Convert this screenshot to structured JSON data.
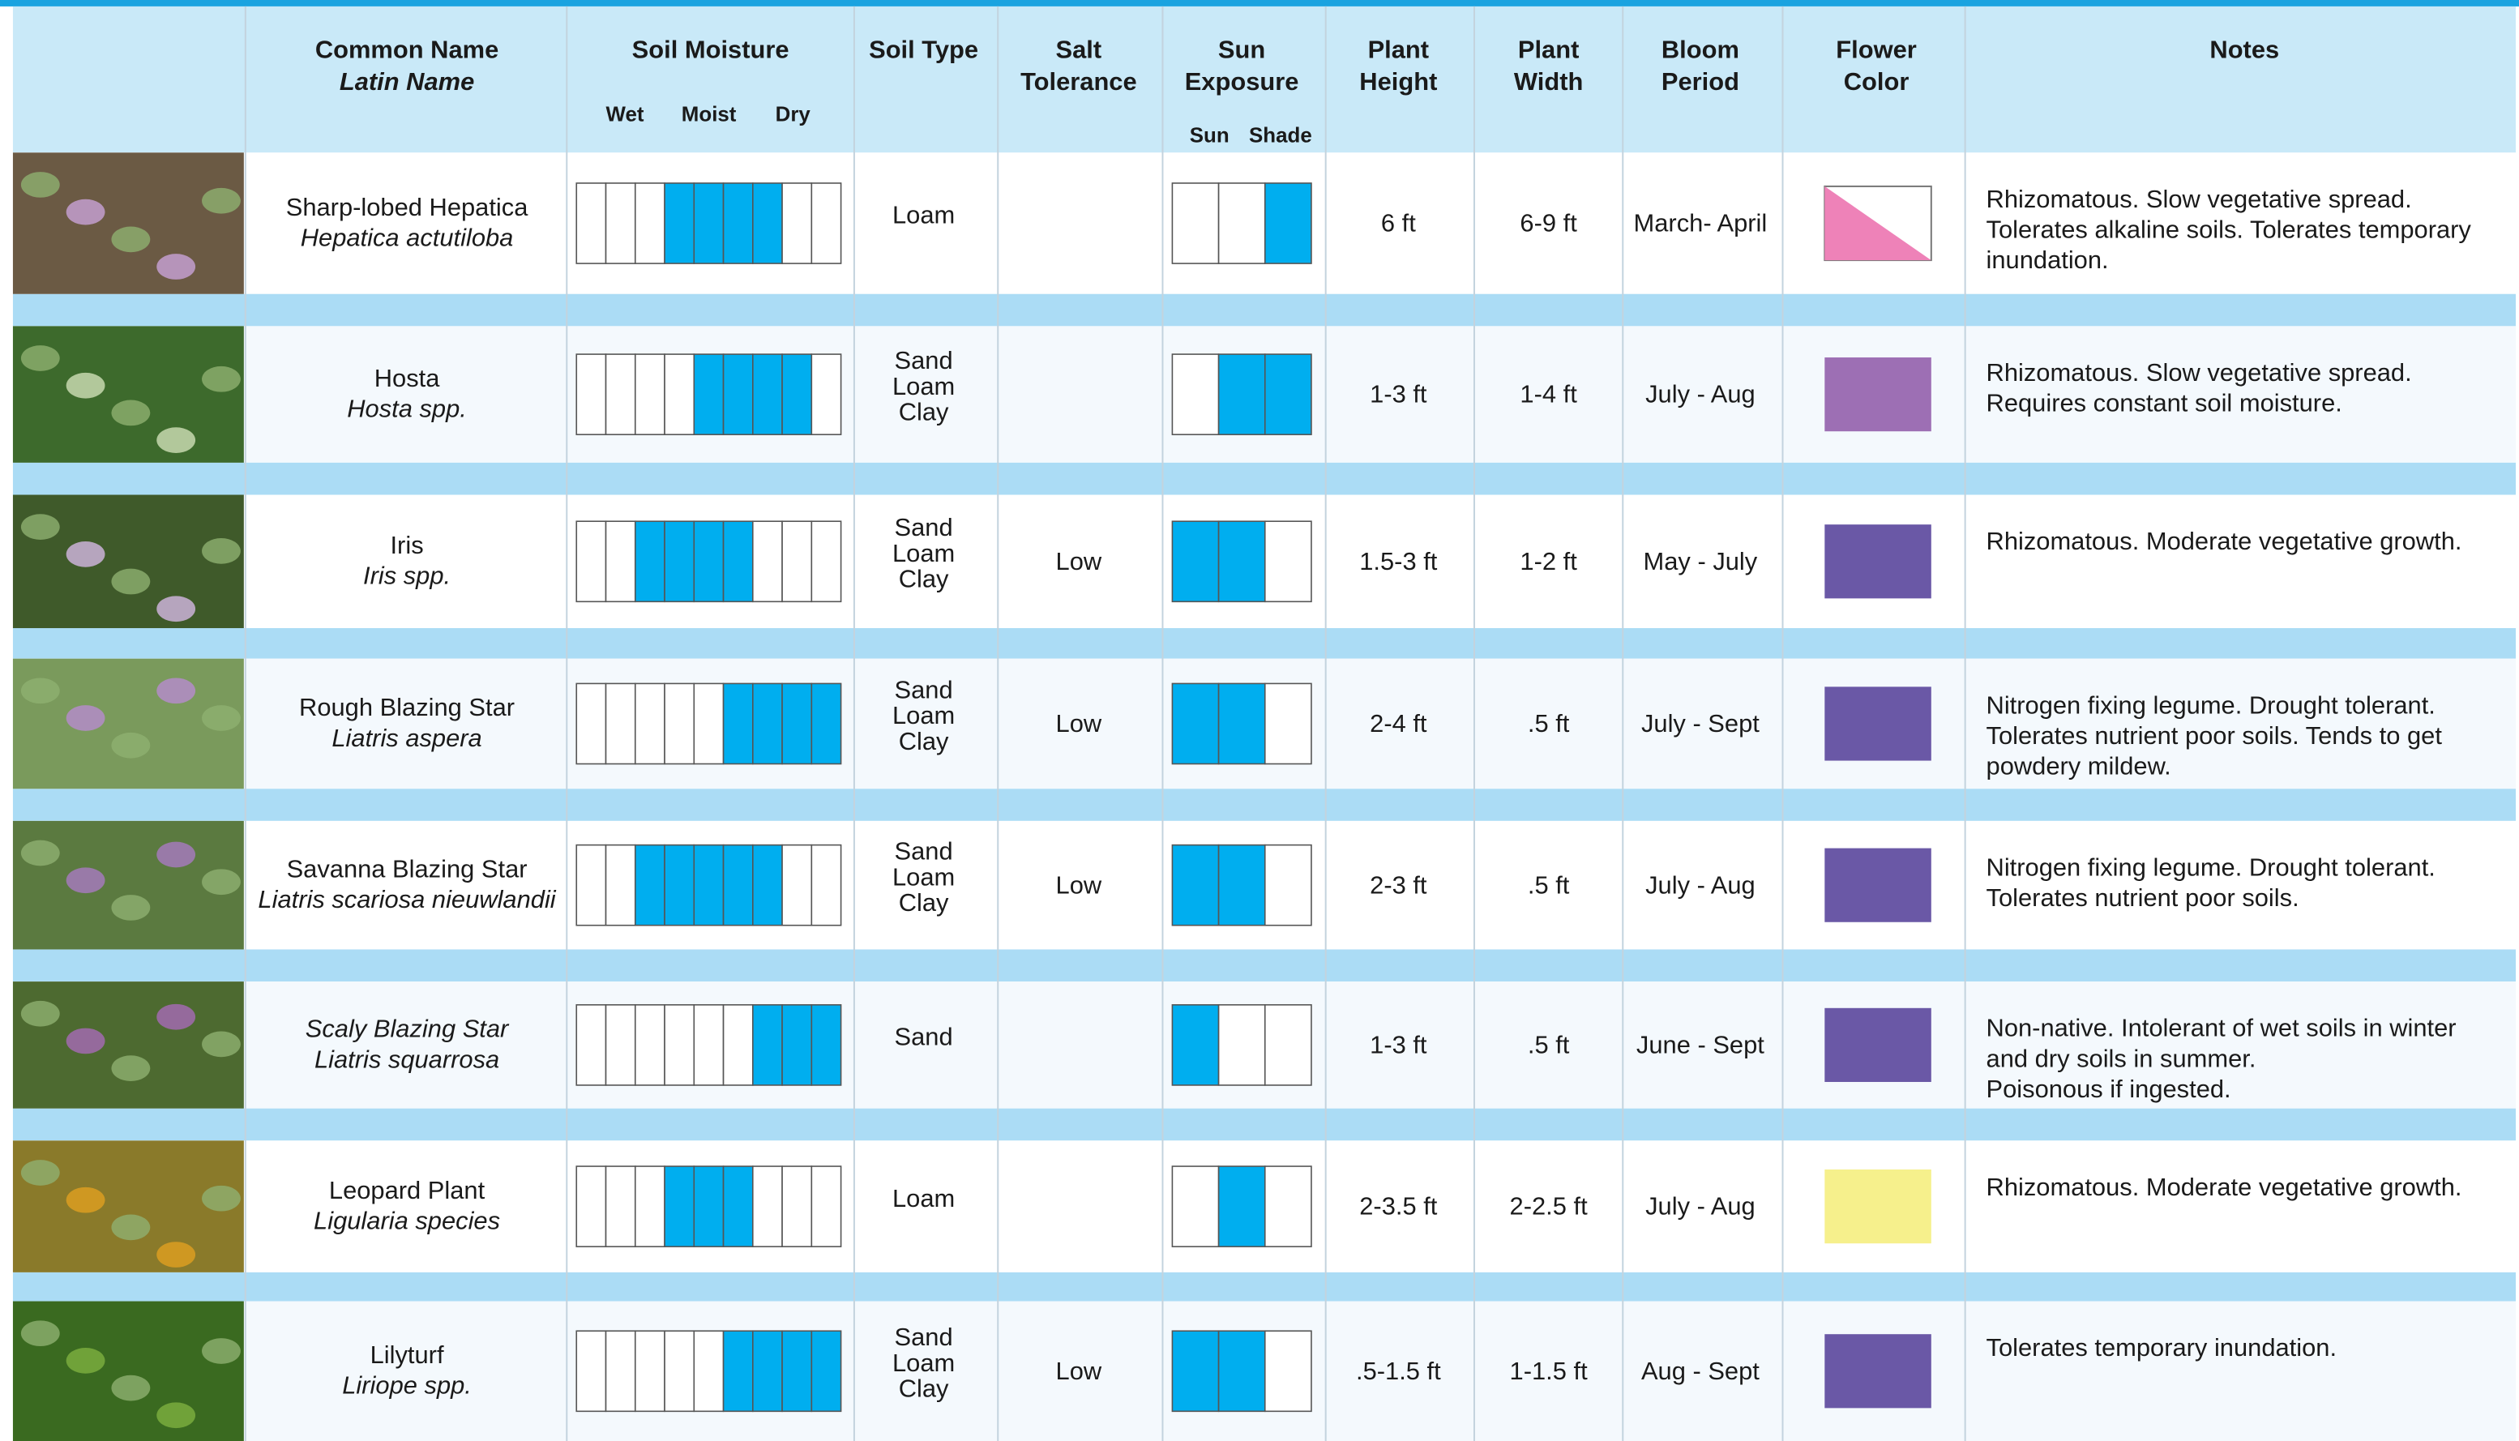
{
  "header": {
    "name": "Common Name",
    "latin": "Latin Name",
    "moisture": "Soil Moisture",
    "moisture_levels": [
      "Wet",
      "Moist",
      "Dry"
    ],
    "soil": "Soil Type",
    "salt": [
      "Salt",
      "Tolerance"
    ],
    "sun": [
      "Sun",
      "Exposure"
    ],
    "sun_levels": [
      "Sun",
      "Shade"
    ],
    "height": [
      "Plant",
      "Height"
    ],
    "width": [
      "Plant",
      "Width"
    ],
    "bloom": [
      "Bloom",
      "Period"
    ],
    "color": [
      "Flower",
      "Color"
    ],
    "notes": "Notes"
  },
  "rows": [
    {
      "name": "Sharp-lobed Hepatica",
      "latin": "Hepatica actutiloba",
      "moisture": [
        0,
        0,
        0,
        1,
        1,
        1,
        1,
        0,
        0
      ],
      "soil": [
        "Loam"
      ],
      "sun": [
        0,
        0,
        1
      ],
      "height": "6 ft",
      "width": "6-9 ft",
      "bloom": "March- April",
      "color": "#ee82b8",
      "color_split": true,
      "notes": [
        "Rhizomatous. Slow vegetative spread.",
        "Tolerates alkaline soils. Tolerates temporary",
        "inundation."
      ]
    },
    {
      "name": "Hosta",
      "latin": "Hosta spp.",
      "moisture": [
        0,
        0,
        0,
        0,
        1,
        1,
        1,
        1,
        0
      ],
      "soil": [
        "Sand",
        "Loam",
        "Clay"
      ],
      "sun": [
        0,
        1,
        1
      ],
      "height": "1-3 ft",
      "width": "1-4 ft",
      "bloom": "July - Aug",
      "color": "#9d6fb4",
      "notes": [
        "Rhizomatous. Slow vegetative spread.",
        "Requires constant soil moisture."
      ]
    },
    {
      "name": "Iris",
      "latin": "Iris spp.",
      "moisture": [
        0,
        0,
        1,
        1,
        1,
        1,
        0,
        0,
        0
      ],
      "soil": [
        "Sand",
        "Loam",
        "Clay"
      ],
      "salt": "Low",
      "sun": [
        1,
        1,
        0
      ],
      "height": "1.5-3 ft",
      "width": "1-2 ft",
      "bloom": "May - July",
      "color": "#6a58a6",
      "notes": [
        "Rhizomatous. Moderate vegetative growth."
      ]
    },
    {
      "name": "Rough Blazing Star",
      "latin": "Liatris aspera",
      "moisture": [
        0,
        0,
        0,
        0,
        0,
        1,
        1,
        1,
        1
      ],
      "soil": [
        "Sand",
        "Loam",
        "Clay"
      ],
      "salt": "Low",
      "sun": [
        1,
        1,
        0
      ],
      "height": "2-4 ft",
      "width": ".5 ft",
      "bloom": "July - Sept",
      "color": "#6a58a6",
      "notes": [
        "Nitrogen fixing legume. Drought tolerant.",
        "Tolerates nutrient poor soils. Tends to get",
        "powdery mildew."
      ]
    },
    {
      "name": "Savanna Blazing Star",
      "latin": "Liatris scariosa nieuwlandii",
      "moisture": [
        0,
        0,
        1,
        1,
        1,
        1,
        1,
        0,
        0
      ],
      "soil": [
        "Sand",
        "Loam",
        "Clay"
      ],
      "salt": "Low",
      "sun": [
        1,
        1,
        0
      ],
      "height": "2-3 ft",
      "width": ".5 ft",
      "bloom": "July - Aug",
      "color": "#6a58a6",
      "notes": [
        "Nitrogen fixing legume. Drought tolerant.",
        "Tolerates nutrient poor soils."
      ]
    },
    {
      "name": "Scaly Blazing Star",
      "name_italic": true,
      "latin": "Liatris squarrosa",
      "moisture": [
        0,
        0,
        0,
        0,
        0,
        0,
        1,
        1,
        1
      ],
      "soil": [
        "Sand"
      ],
      "sun": [
        1,
        0,
        0
      ],
      "height": "1-3 ft",
      "width": ".5 ft",
      "bloom": "June - Sept",
      "color": "#6a58a6",
      "notes": [
        "Non-native. Intolerant of wet soils in winter",
        "and dry soils in summer.",
        "Poisonous if ingested."
      ]
    },
    {
      "name": "Leopard Plant",
      "latin": "Ligularia species",
      "moisture": [
        0,
        0,
        0,
        1,
        1,
        1,
        0,
        0,
        0
      ],
      "soil": [
        "Loam"
      ],
      "sun": [
        0,
        1,
        0
      ],
      "height": "2-3.5 ft",
      "width": "2-2.5 ft",
      "bloom": "July - Aug",
      "color": "#f6f08c",
      "notes": [
        "Rhizomatous. Moderate vegetative growth."
      ]
    },
    {
      "name": "Lilyturf",
      "latin": "Liriope spp.",
      "moisture": [
        0,
        0,
        0,
        0,
        0,
        1,
        1,
        1,
        1
      ],
      "soil": [
        "Sand",
        "Loam",
        "Clay"
      ],
      "salt": "Low",
      "sun": [
        1,
        1,
        0
      ],
      "height": ".5-1.5 ft",
      "width": "1-1.5 ft",
      "bloom": "Aug - Sept",
      "color": "#6a58a6",
      "notes": [
        "Tolerates temporary inundation."
      ]
    }
  ]
}
